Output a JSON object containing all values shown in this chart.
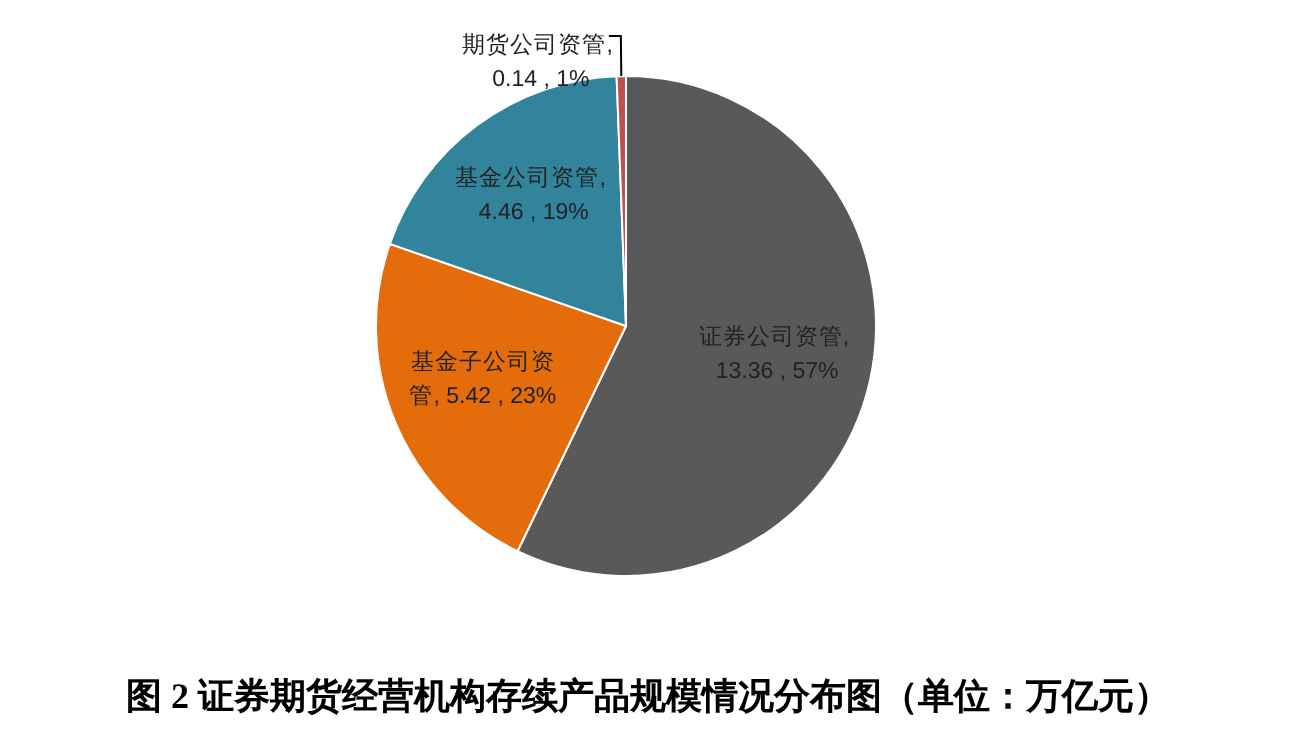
{
  "chart_data": {
    "type": "pie",
    "title": "图 2  证券期货经营机构存续产品规模情况分布图（单位：万亿元）",
    "categories": [
      "证券公司资管",
      "基金子公司资管",
      "基金公司资管",
      "期货公司资管"
    ],
    "values": [
      13.36,
      5.42,
      4.46,
      0.14
    ],
    "value_labels": [
      ", 13.36 , 57%",
      ", 5.42 , 23%",
      ", 4.46 , 19%",
      ", 0.14 , 1%"
    ],
    "colors": [
      "#595959",
      "#e46c0a",
      "#31849b",
      "#c0504d"
    ],
    "legend": false
  }
}
